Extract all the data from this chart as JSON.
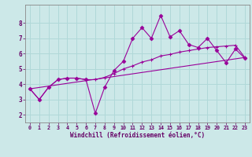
{
  "xlabel": "Windchill (Refroidissement éolien,°C)",
  "bg_color": "#cce8e8",
  "grid_color": "#b0d8d8",
  "line_color": "#990099",
  "line1_x": [
    0,
    1,
    2,
    3,
    4,
    5,
    6,
    7,
    8,
    9,
    10,
    11,
    12,
    13,
    14,
    15,
    16,
    17,
    18,
    19,
    20,
    21,
    22,
    23
  ],
  "line1_y": [
    3.7,
    3.0,
    3.8,
    4.3,
    4.4,
    4.4,
    4.3,
    2.1,
    3.8,
    4.9,
    5.5,
    7.0,
    7.7,
    7.0,
    8.5,
    7.1,
    7.5,
    6.6,
    6.4,
    7.0,
    6.2,
    5.4,
    6.3,
    5.7
  ],
  "line2_x": [
    0,
    1,
    2,
    3,
    4,
    5,
    6,
    7,
    8,
    9,
    10,
    11,
    12,
    13,
    14,
    15,
    16,
    17,
    18,
    19,
    20,
    21,
    22,
    23
  ],
  "line2_y": [
    3.7,
    3.0,
    3.8,
    4.3,
    4.4,
    4.4,
    4.3,
    4.3,
    4.45,
    4.7,
    5.0,
    5.2,
    5.45,
    5.6,
    5.85,
    5.95,
    6.1,
    6.2,
    6.3,
    6.4,
    6.45,
    6.5,
    6.55,
    5.75
  ],
  "line3_x": [
    0,
    23
  ],
  "line3_y": [
    3.7,
    5.75
  ],
  "ylim": [
    1.5,
    9.2
  ],
  "xlim": [
    -0.5,
    23.5
  ],
  "yticks": [
    2,
    3,
    4,
    5,
    6,
    7,
    8
  ],
  "xticks": [
    0,
    1,
    2,
    3,
    4,
    5,
    6,
    7,
    8,
    9,
    10,
    11,
    12,
    13,
    14,
    15,
    16,
    17,
    18,
    19,
    20,
    21,
    22,
    23
  ],
  "spine_color": "#888888",
  "tick_color": "#660066",
  "label_color": "#660066"
}
